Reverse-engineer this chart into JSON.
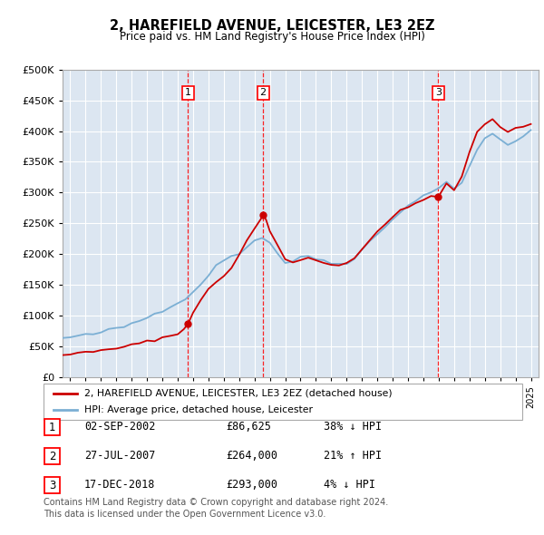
{
  "title": "2, HAREFIELD AVENUE, LEICESTER, LE3 2EZ",
  "subtitle": "Price paid vs. HM Land Registry's House Price Index (HPI)",
  "plot_bg_color": "#dce6f1",
  "red_line_color": "#cc0000",
  "blue_line_color": "#7bafd4",
  "purchases": [
    {
      "num": 1,
      "date_x": 2002.67,
      "price": 86625,
      "label": "02-SEP-2002",
      "pct": "38% ↓ HPI"
    },
    {
      "num": 2,
      "date_x": 2007.56,
      "price": 264000,
      "label": "27-JUL-2007",
      "pct": "21% ↑ HPI"
    },
    {
      "num": 3,
      "date_x": 2018.96,
      "price": 293000,
      "label": "17-DEC-2018",
      "pct": "4% ↓ HPI"
    }
  ],
  "legend_label_red": "2, HAREFIELD AVENUE, LEICESTER, LE3 2EZ (detached house)",
  "legend_label_blue": "HPI: Average price, detached house, Leicester",
  "footer": "Contains HM Land Registry data © Crown copyright and database right 2024.\nThis data is licensed under the Open Government Licence v3.0.",
  "ylim": [
    0,
    500000
  ],
  "yticks": [
    0,
    50000,
    100000,
    150000,
    200000,
    250000,
    300000,
    350000,
    400000,
    450000,
    500000
  ],
  "xlim_start": 1994.5,
  "xlim_end": 2025.5,
  "hpi_years": [
    1994.5,
    1995,
    1995.5,
    1996,
    1996.5,
    1997,
    1997.5,
    1998,
    1998.5,
    1999,
    1999.5,
    2000,
    2000.5,
    2001,
    2001.5,
    2002,
    2002.5,
    2003,
    2003.5,
    2004,
    2004.5,
    2005,
    2005.5,
    2006,
    2006.5,
    2007,
    2007.5,
    2008,
    2008.5,
    2009,
    2009.5,
    2010,
    2010.5,
    2011,
    2011.5,
    2012,
    2012.5,
    2013,
    2013.5,
    2014,
    2014.5,
    2015,
    2015.5,
    2016,
    2016.5,
    2017,
    2017.5,
    2018,
    2018.5,
    2019,
    2019.5,
    2020,
    2020.5,
    2021,
    2021.5,
    2022,
    2022.5,
    2023,
    2023.5,
    2024,
    2024.5,
    2025
  ],
  "hpi_values": [
    63000,
    65000,
    66500,
    68000,
    70000,
    73000,
    76000,
    79000,
    82000,
    87000,
    92000,
    97000,
    103000,
    109000,
    116000,
    121000,
    128000,
    138000,
    152000,
    167000,
    180000,
    190000,
    197000,
    202000,
    212000,
    222000,
    228000,
    218000,
    202000,
    186000,
    189000,
    193000,
    197000,
    193000,
    189000,
    186000,
    184000,
    187000,
    194000,
    207000,
    220000,
    232000,
    244000,
    257000,
    270000,
    280000,
    287000,
    294000,
    300000,
    310000,
    317000,
    307000,
    317000,
    342000,
    368000,
    387000,
    397000,
    387000,
    377000,
    382000,
    392000,
    402000
  ],
  "red_years": [
    1994.5,
    1995,
    1995.5,
    1996,
    1996.5,
    1997,
    1997.5,
    1998,
    1998.5,
    1999,
    1999.5,
    2000,
    2000.5,
    2001,
    2001.5,
    2002,
    2002.4,
    2002.67,
    2003,
    2003.5,
    2004,
    2004.5,
    2005,
    2005.5,
    2006,
    2006.5,
    2007,
    2007.4,
    2007.56,
    2007.75,
    2008,
    2008.5,
    2009,
    2009.5,
    2010,
    2010.5,
    2011,
    2011.5,
    2012,
    2012.5,
    2013,
    2013.5,
    2014,
    2014.5,
    2015,
    2015.5,
    2016,
    2016.5,
    2017,
    2017.5,
    2018,
    2018.5,
    2018.96,
    2019.1,
    2019.5,
    2020,
    2020.5,
    2021,
    2021.5,
    2022,
    2022.5,
    2023,
    2023.5,
    2024,
    2024.5,
    2025
  ],
  "red_values": [
    37000,
    38000,
    39000,
    40000,
    41000,
    43000,
    45000,
    47000,
    49000,
    52000,
    55000,
    58000,
    61000,
    64000,
    67000,
    70000,
    78000,
    86625,
    105000,
    125000,
    142000,
    155000,
    165000,
    178000,
    198000,
    222000,
    242000,
    256000,
    264000,
    255000,
    238000,
    215000,
    192000,
    188000,
    190000,
    194000,
    190000,
    186000,
    184000,
    182000,
    186000,
    194000,
    208000,
    222000,
    235000,
    248000,
    260000,
    272000,
    278000,
    283000,
    288000,
    292000,
    293000,
    298000,
    315000,
    305000,
    325000,
    365000,
    398000,
    412000,
    418000,
    408000,
    398000,
    403000,
    408000,
    412000
  ]
}
